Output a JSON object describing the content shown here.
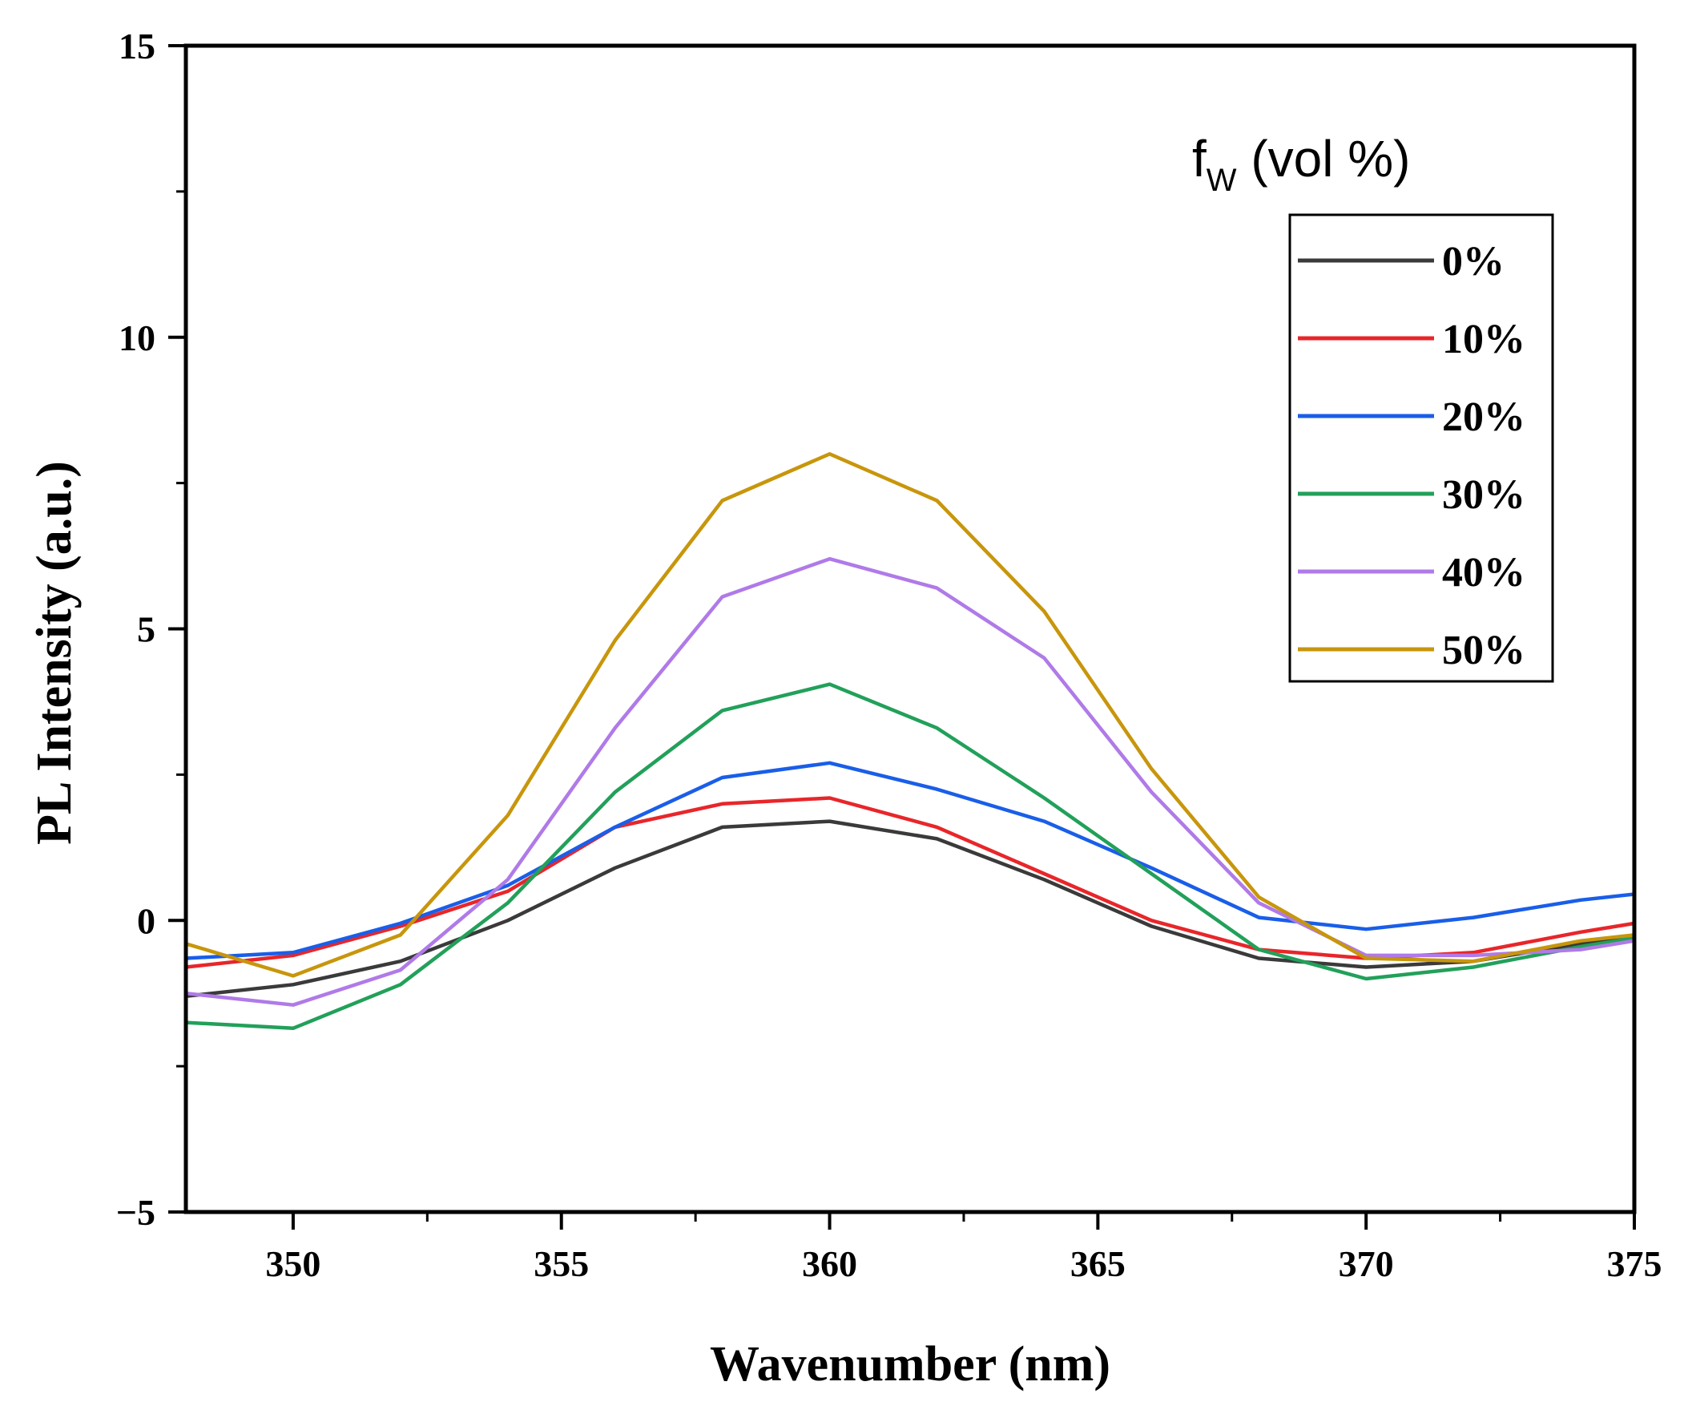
{
  "chart_data": {
    "type": "line",
    "title": "",
    "xlabel": "Wavenumber (nm)",
    "ylabel": "PL Intensity (a.u.)",
    "xlim": [
      348,
      375
    ],
    "ylim": [
      -5,
      15
    ],
    "x_ticks": [
      350,
      355,
      360,
      365,
      370,
      375
    ],
    "y_ticks": [
      -5,
      0,
      5,
      10,
      15
    ],
    "x_tick_labels": [
      "350",
      "355",
      "360",
      "365",
      "370",
      "375"
    ],
    "y_tick_labels": [
      "−5",
      "0",
      "5",
      "10",
      "15"
    ],
    "legend_title_main": "f",
    "legend_title_sub": "W",
    "legend_title_rest": " (vol %)",
    "legend_position": "top-right",
    "x": [
      348,
      350,
      352,
      354,
      356,
      358,
      360,
      362,
      364,
      366,
      368,
      370,
      372,
      374,
      375
    ],
    "series": [
      {
        "name": "0%",
        "color": "#3a3a3a",
        "values": [
          -1.3,
          -1.1,
          -0.7,
          0.0,
          0.9,
          1.6,
          1.7,
          1.4,
          0.7,
          -0.1,
          -0.65,
          -0.8,
          -0.7,
          -0.4,
          -0.3
        ]
      },
      {
        "name": "10%",
        "color": "#e8262a",
        "values": [
          -0.8,
          -0.6,
          -0.1,
          0.5,
          1.6,
          2.0,
          2.1,
          1.6,
          0.8,
          0.0,
          -0.5,
          -0.65,
          -0.55,
          -0.2,
          -0.05
        ]
      },
      {
        "name": "20%",
        "color": "#1a5ee8",
        "values": [
          -0.65,
          -0.55,
          -0.05,
          0.6,
          1.6,
          2.45,
          2.7,
          2.25,
          1.7,
          0.9,
          0.05,
          -0.15,
          0.05,
          0.35,
          0.45
        ]
      },
      {
        "name": "30%",
        "color": "#22a05a",
        "values": [
          -1.75,
          -1.85,
          -1.1,
          0.3,
          2.2,
          3.6,
          4.05,
          3.3,
          2.1,
          0.8,
          -0.5,
          -1.0,
          -0.8,
          -0.45,
          -0.3
        ]
      },
      {
        "name": "40%",
        "color": "#b07ae8",
        "values": [
          -1.25,
          -1.45,
          -0.85,
          0.7,
          3.3,
          5.55,
          6.2,
          5.7,
          4.5,
          2.2,
          0.3,
          -0.6,
          -0.6,
          -0.5,
          -0.35
        ]
      },
      {
        "name": "50%",
        "color": "#c8960c",
        "values": [
          -0.4,
          -0.95,
          -0.25,
          1.8,
          4.8,
          7.2,
          8.0,
          7.2,
          5.3,
          2.6,
          0.4,
          -0.65,
          -0.7,
          -0.35,
          -0.25
        ]
      }
    ]
  }
}
